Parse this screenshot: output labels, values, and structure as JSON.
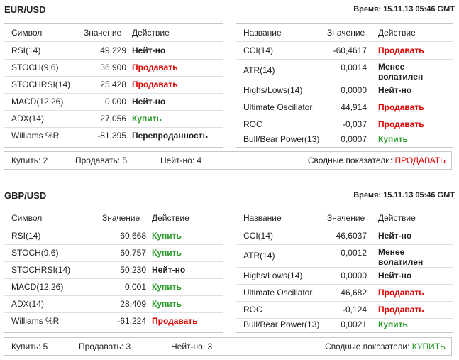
{
  "sections": [
    {
      "pair": "EUR/USD",
      "time": "Время: 15.11.13 05:46 GMT",
      "left_headers": [
        "Символ",
        "Значение",
        "Действие"
      ],
      "right_headers": [
        "Название",
        "Значение",
        "Действие"
      ],
      "left_rows": [
        {
          "name": "RSI(14)",
          "value": "49,229",
          "action": "Нейт-но",
          "status": "neutral"
        },
        {
          "name": "STOCH(9,6)",
          "value": "36,900",
          "action": "Продавать",
          "status": "sell"
        },
        {
          "name": "STOCHRSI(14)",
          "value": "25,428",
          "action": "Продавать",
          "status": "sell"
        },
        {
          "name": "MACD(12,26)",
          "value": "0,000",
          "action": "Нейт-но",
          "status": "neutral"
        },
        {
          "name": "ADX(14)",
          "value": "27,056",
          "action": "Купить",
          "status": "buy"
        },
        {
          "name": "Williams %R",
          "value": "-81,395",
          "action": "Перепроданность",
          "status": "neutral"
        }
      ],
      "right_rows": [
        {
          "name": "CCI(14)",
          "value": "-60,4617",
          "action": "Продавать",
          "status": "sell"
        },
        {
          "name": "ATR(14)",
          "value": "0,0014",
          "action": "Менее волатилен",
          "status": "neutral"
        },
        {
          "name": "Highs/Lows(14)",
          "value": "0,0000",
          "action": "Нейт-но",
          "status": "neutral"
        },
        {
          "name": "Ultimate Oscillator",
          "value": "44,914",
          "action": "Продавать",
          "status": "sell"
        },
        {
          "name": "ROC",
          "value": "-0,037",
          "action": "Продавать",
          "status": "sell"
        },
        {
          "name": "Bull/Bear Power(13)",
          "value": "0,0007",
          "action": "Купить",
          "status": "buy"
        }
      ],
      "summary": {
        "buy": "Купить: 2",
        "sell": "Продавать: 5",
        "neutral": "Нейт-но: 4",
        "total_label": "Сводные показатели: ",
        "total_value": "ПРОДАВАТЬ",
        "total_status": "sell"
      }
    },
    {
      "pair": "GBP/USD",
      "time": "Время: 15.11.13 05:46 GMT",
      "left_headers": [
        "Символ",
        "Значение",
        "Действие"
      ],
      "right_headers": [
        "Название",
        "Значение",
        "Действие"
      ],
      "left_rows": [
        {
          "name": "RSI(14)",
          "value": "60,668",
          "action": "Купить",
          "status": "buy"
        },
        {
          "name": "STOCH(9,6)",
          "value": "60,757",
          "action": "Купить",
          "status": "buy"
        },
        {
          "name": "STOCHRSI(14)",
          "value": "50,230",
          "action": "Нейт-но",
          "status": "neutral"
        },
        {
          "name": "MACD(12,26)",
          "value": "0,001",
          "action": "Купить",
          "status": "buy"
        },
        {
          "name": "ADX(14)",
          "value": "28,409",
          "action": "Купить",
          "status": "buy"
        },
        {
          "name": "Williams %R",
          "value": "-61,224",
          "action": "Продавать",
          "status": "sell"
        }
      ],
      "right_rows": [
        {
          "name": "CCI(14)",
          "value": "46,6037",
          "action": "Нейт-но",
          "status": "neutral"
        },
        {
          "name": "ATR(14)",
          "value": "0,0012",
          "action": "Менее волатилен",
          "status": "neutral"
        },
        {
          "name": "Highs/Lows(14)",
          "value": "0,0000",
          "action": "Нейт-но",
          "status": "neutral"
        },
        {
          "name": "Ultimate Oscillator",
          "value": "46,682",
          "action": "Продавать",
          "status": "sell"
        },
        {
          "name": "ROC",
          "value": "-0,124",
          "action": "Продавать",
          "status": "sell"
        },
        {
          "name": "Bull/Bear Power(13)",
          "value": "0,0021",
          "action": "Купить",
          "status": "buy"
        }
      ],
      "summary": {
        "buy": "Купить: 5",
        "sell": "Продавать: 3",
        "neutral": "Нейт-но: 3",
        "total_label": "Сводные показатели: ",
        "total_value": "КУПИТЬ",
        "total_status": "buy"
      }
    }
  ]
}
